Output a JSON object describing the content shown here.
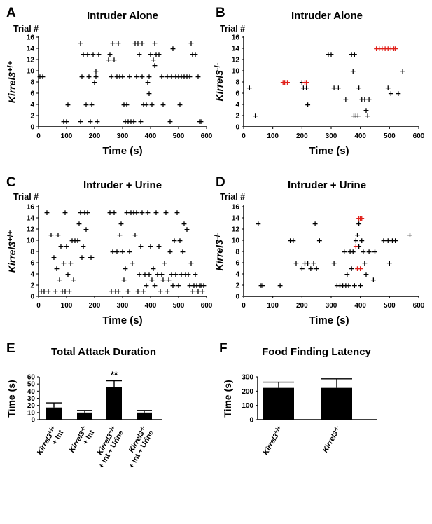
{
  "chart_data": [
    {
      "type": "scatter",
      "panel": "A",
      "title": "Intruder Alone",
      "trial_label": "Trial #",
      "ylabel": "Kirrel3+/+",
      "xlabel": "Time (s)",
      "xlim": [
        0,
        600
      ],
      "ylim": [
        0,
        16
      ],
      "xticks": [
        0,
        100,
        200,
        300,
        400,
        500,
        600
      ],
      "yticks": [
        0,
        2,
        4,
        6,
        8,
        10,
        12,
        14,
        16
      ],
      "points_black": [
        [
          5,
          9
        ],
        [
          15,
          9
        ],
        [
          90,
          1
        ],
        [
          100,
          1
        ],
        [
          105,
          4
        ],
        [
          150,
          1
        ],
        [
          170,
          4
        ],
        [
          180,
          9
        ],
        [
          185,
          1
        ],
        [
          190,
          4
        ],
        [
          150,
          15
        ],
        [
          155,
          9
        ],
        [
          160,
          13
        ],
        [
          175,
          13
        ],
        [
          195,
          13
        ],
        [
          200,
          8
        ],
        [
          205,
          10
        ],
        [
          210,
          1
        ],
        [
          205,
          9
        ],
        [
          215,
          13
        ],
        [
          250,
          12
        ],
        [
          255,
          13
        ],
        [
          260,
          9
        ],
        [
          270,
          12
        ],
        [
          265,
          15
        ],
        [
          280,
          9
        ],
        [
          285,
          15
        ],
        [
          290,
          9
        ],
        [
          300,
          9
        ],
        [
          305,
          4
        ],
        [
          310,
          1
        ],
        [
          315,
          4
        ],
        [
          320,
          1
        ],
        [
          325,
          9
        ],
        [
          330,
          1
        ],
        [
          340,
          1
        ],
        [
          345,
          15
        ],
        [
          350,
          9
        ],
        [
          355,
          15
        ],
        [
          360,
          13
        ],
        [
          365,
          1
        ],
        [
          370,
          9
        ],
        [
          370,
          15
        ],
        [
          375,
          4
        ],
        [
          385,
          4
        ],
        [
          390,
          8
        ],
        [
          395,
          6
        ],
        [
          395,
          9
        ],
        [
          400,
          13
        ],
        [
          405,
          4
        ],
        [
          410,
          12
        ],
        [
          415,
          11
        ],
        [
          415,
          15
        ],
        [
          420,
          13
        ],
        [
          430,
          13
        ],
        [
          440,
          9
        ],
        [
          445,
          4
        ],
        [
          460,
          9
        ],
        [
          470,
          1
        ],
        [
          475,
          9
        ],
        [
          480,
          14
        ],
        [
          490,
          9
        ],
        [
          500,
          9
        ],
        [
          505,
          4
        ],
        [
          510,
          9
        ],
        [
          520,
          9
        ],
        [
          530,
          9
        ],
        [
          540,
          9
        ],
        [
          545,
          15
        ],
        [
          550,
          13
        ],
        [
          560,
          13
        ],
        [
          570,
          9
        ],
        [
          575,
          1
        ],
        [
          580,
          1
        ]
      ],
      "points_red": []
    },
    {
      "type": "scatter",
      "panel": "B",
      "title": "Intruder Alone",
      "trial_label": "Trial #",
      "ylabel": "Kirrel3-/-",
      "xlabel": "Time (s)",
      "xlim": [
        0,
        600
      ],
      "ylim": [
        0,
        16
      ],
      "xticks": [
        0,
        100,
        200,
        300,
        400,
        500,
        600
      ],
      "yticks": [
        0,
        2,
        4,
        6,
        8,
        10,
        12,
        14,
        16
      ],
      "points_black": [
        [
          20,
          7
        ],
        [
          40,
          2
        ],
        [
          200,
          8
        ],
        [
          205,
          7
        ],
        [
          215,
          7
        ],
        [
          220,
          4
        ],
        [
          290,
          13
        ],
        [
          300,
          13
        ],
        [
          310,
          7
        ],
        [
          325,
          7
        ],
        [
          350,
          5
        ],
        [
          370,
          13
        ],
        [
          375,
          10
        ],
        [
          378,
          2
        ],
        [
          380,
          13
        ],
        [
          385,
          2
        ],
        [
          392,
          2
        ],
        [
          395,
          7
        ],
        [
          405,
          5
        ],
        [
          415,
          5
        ],
        [
          420,
          3
        ],
        [
          425,
          2
        ],
        [
          430,
          5
        ],
        [
          495,
          7
        ],
        [
          505,
          6
        ],
        [
          530,
          6
        ],
        [
          545,
          10
        ]
      ],
      "points_red": [
        [
          135,
          8
        ],
        [
          140,
          8
        ],
        [
          145,
          8
        ],
        [
          150,
          8
        ],
        [
          210,
          8
        ],
        [
          215,
          8
        ],
        [
          455,
          14
        ],
        [
          465,
          14
        ],
        [
          475,
          14
        ],
        [
          485,
          14
        ],
        [
          495,
          14
        ],
        [
          505,
          14
        ],
        [
          515,
          14
        ],
        [
          520,
          14
        ]
      ]
    },
    {
      "type": "scatter",
      "panel": "C",
      "title": "Intruder + Urine",
      "trial_label": "Trial #",
      "ylabel": "Kirrel3+/+",
      "xlabel": "Time (s)",
      "xlim": [
        0,
        600
      ],
      "ylim": [
        0,
        16
      ],
      "xticks": [
        0,
        100,
        200,
        300,
        400,
        500,
        600
      ],
      "yticks": [
        0,
        2,
        4,
        6,
        8,
        10,
        12,
        14,
        16
      ],
      "points_black": [
        [
          10,
          1
        ],
        [
          20,
          1
        ],
        [
          30,
          15
        ],
        [
          35,
          1
        ],
        [
          45,
          11
        ],
        [
          55,
          7
        ],
        [
          60,
          1
        ],
        [
          65,
          5
        ],
        [
          70,
          11
        ],
        [
          75,
          3
        ],
        [
          80,
          9
        ],
        [
          85,
          1
        ],
        [
          90,
          6
        ],
        [
          95,
          1
        ],
        [
          95,
          15
        ],
        [
          100,
          9
        ],
        [
          105,
          4
        ],
        [
          110,
          1
        ],
        [
          115,
          6
        ],
        [
          120,
          10
        ],
        [
          125,
          3
        ],
        [
          130,
          10
        ],
        [
          140,
          10
        ],
        [
          145,
          13
        ],
        [
          150,
          15
        ],
        [
          155,
          7
        ],
        [
          160,
          9
        ],
        [
          165,
          15
        ],
        [
          170,
          12
        ],
        [
          175,
          15
        ],
        [
          185,
          7
        ],
        [
          190,
          7
        ],
        [
          255,
          15
        ],
        [
          260,
          1
        ],
        [
          265,
          8
        ],
        [
          270,
          15
        ],
        [
          275,
          1
        ],
        [
          280,
          8
        ],
        [
          285,
          1
        ],
        [
          290,
          11
        ],
        [
          295,
          13
        ],
        [
          300,
          8
        ],
        [
          305,
          3
        ],
        [
          310,
          5
        ],
        [
          315,
          15
        ],
        [
          320,
          1
        ],
        [
          325,
          8
        ],
        [
          330,
          15
        ],
        [
          335,
          6
        ],
        [
          340,
          15
        ],
        [
          345,
          11
        ],
        [
          350,
          15
        ],
        [
          355,
          1
        ],
        [
          360,
          4
        ],
        [
          365,
          9
        ],
        [
          370,
          15
        ],
        [
          375,
          1
        ],
        [
          380,
          4
        ],
        [
          385,
          2
        ],
        [
          390,
          15
        ],
        [
          395,
          4
        ],
        [
          400,
          9
        ],
        [
          405,
          3
        ],
        [
          410,
          5
        ],
        [
          415,
          2
        ],
        [
          420,
          15
        ],
        [
          425,
          4
        ],
        [
          430,
          9
        ],
        [
          435,
          1
        ],
        [
          440,
          4
        ],
        [
          445,
          3
        ],
        [
          450,
          6
        ],
        [
          455,
          15
        ],
        [
          460,
          1
        ],
        [
          465,
          3
        ],
        [
          470,
          8
        ],
        [
          475,
          4
        ],
        [
          480,
          2
        ],
        [
          485,
          10
        ],
        [
          490,
          4
        ],
        [
          495,
          15
        ],
        [
          500,
          2
        ],
        [
          505,
          10
        ],
        [
          510,
          4
        ],
        [
          515,
          8
        ],
        [
          520,
          13
        ],
        [
          525,
          4
        ],
        [
          530,
          12
        ],
        [
          535,
          4
        ],
        [
          540,
          2
        ],
        [
          545,
          6
        ],
        [
          550,
          1
        ],
        [
          555,
          2
        ],
        [
          560,
          4
        ],
        [
          565,
          2
        ],
        [
          570,
          1
        ],
        [
          575,
          2
        ],
        [
          580,
          2
        ],
        [
          585,
          1
        ],
        [
          590,
          2
        ]
      ],
      "points_red": []
    },
    {
      "type": "scatter",
      "panel": "D",
      "title": "Intruder + Urine",
      "trial_label": "Trial #",
      "ylabel": "Kirrel3-/-",
      "xlabel": "Time (s)",
      "xlim": [
        0,
        600
      ],
      "ylim": [
        0,
        16
      ],
      "xticks": [
        0,
        100,
        200,
        300,
        400,
        500,
        600
      ],
      "yticks": [
        0,
        2,
        4,
        6,
        8,
        10,
        12,
        14,
        16
      ],
      "points_black": [
        [
          50,
          13
        ],
        [
          60,
          2
        ],
        [
          65,
          2
        ],
        [
          125,
          2
        ],
        [
          160,
          10
        ],
        [
          170,
          10
        ],
        [
          180,
          6
        ],
        [
          200,
          5
        ],
        [
          210,
          6
        ],
        [
          220,
          6
        ],
        [
          230,
          5
        ],
        [
          240,
          6
        ],
        [
          245,
          13
        ],
        [
          250,
          5
        ],
        [
          260,
          10
        ],
        [
          310,
          6
        ],
        [
          320,
          2
        ],
        [
          330,
          2
        ],
        [
          340,
          2
        ],
        [
          345,
          8
        ],
        [
          350,
          2
        ],
        [
          355,
          4
        ],
        [
          360,
          2
        ],
        [
          365,
          8
        ],
        [
          370,
          5
        ],
        [
          375,
          8
        ],
        [
          380,
          2
        ],
        [
          385,
          10
        ],
        [
          390,
          11
        ],
        [
          395,
          9
        ],
        [
          395,
          13
        ],
        [
          400,
          2
        ],
        [
          405,
          10
        ],
        [
          410,
          8
        ],
        [
          415,
          6
        ],
        [
          420,
          4
        ],
        [
          430,
          8
        ],
        [
          445,
          3
        ],
        [
          450,
          8
        ],
        [
          480,
          10
        ],
        [
          495,
          10
        ],
        [
          500,
          6
        ],
        [
          510,
          10
        ],
        [
          520,
          10
        ],
        [
          570,
          11
        ]
      ],
      "points_red": [
        [
          385,
          9
        ],
        [
          395,
          14
        ],
        [
          400,
          14
        ],
        [
          405,
          14
        ],
        [
          390,
          5
        ],
        [
          400,
          5
        ]
      ]
    },
    {
      "type": "bar",
      "panel": "E",
      "title": "Total Attack Duration",
      "ylabel": "Time (s)",
      "ylim": [
        0,
        60
      ],
      "yticks": [
        0,
        10,
        20,
        30,
        40,
        50,
        60
      ],
      "categories": [
        [
          "Kirrel3+/+",
          "+ Int"
        ],
        [
          "Kirrel3-/-",
          "+ Int"
        ],
        [
          "Kirrel3+/+",
          "+ Int + Urine"
        ],
        [
          "Kirrel3-/-",
          "+ Int + Urine"
        ]
      ],
      "values": [
        17,
        10,
        46,
        10
      ],
      "errors": [
        6.5,
        3,
        8.5,
        3
      ],
      "annotation": {
        "index": 2,
        "text": "**"
      }
    },
    {
      "type": "bar",
      "panel": "F",
      "title": "Food Finding Latency",
      "ylabel": "Time (s)",
      "ylim": [
        0,
        300
      ],
      "yticks": [
        0,
        100,
        200,
        300
      ],
      "categories": [
        "Kirrel3+/+",
        "Kirrel3-/-"
      ],
      "values": [
        223,
        223
      ],
      "errors": [
        40,
        63
      ]
    }
  ]
}
